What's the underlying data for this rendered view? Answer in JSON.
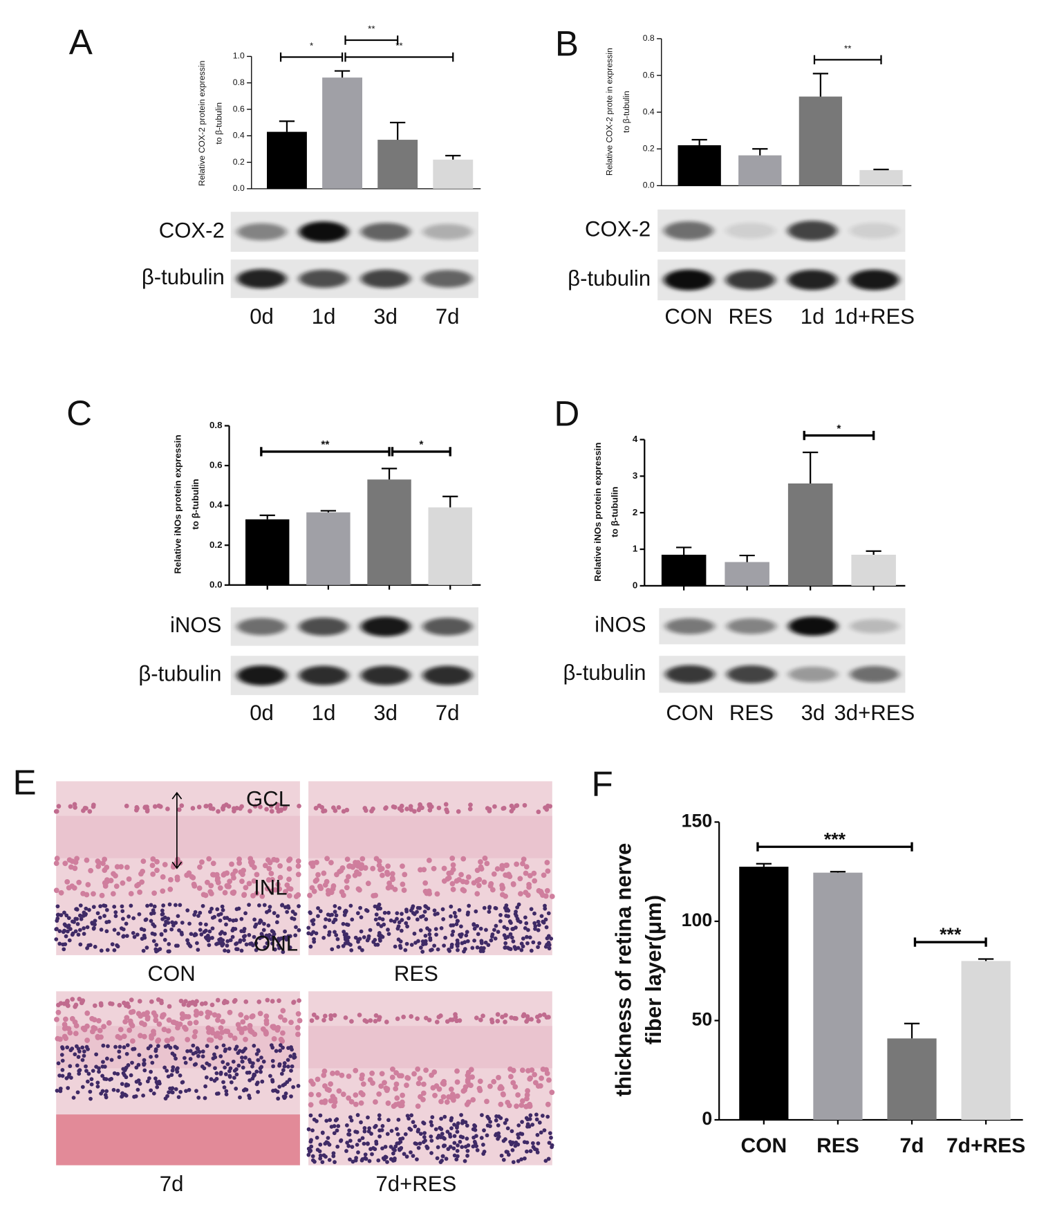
{
  "chart_data": [
    {
      "type": "bar",
      "panel": "A",
      "ylabel": [
        "Relative COX-2 protein expressin",
        "to β-tubulin"
      ],
      "categories": [
        "0d",
        "1d",
        "3d",
        "7d"
      ],
      "values": [
        0.43,
        0.84,
        0.37,
        0.22
      ],
      "errors": [
        0.08,
        0.05,
        0.13,
        0.03
      ],
      "colors": [
        "#000000",
        "#a0a0a6",
        "#787878",
        "#d9d9d9"
      ],
      "ylim": [
        0,
        1.0
      ],
      "yticks": [
        {
          "value": 0,
          "label": "0.0"
        },
        0.2,
        0.4,
        0.6,
        0.8,
        {
          "value": 1,
          "label": "1.0"
        }
      ],
      "blot_bands": [
        "COX-2",
        "β-tubulin"
      ],
      "annotations": [
        {
          "text": "*",
          "between": [
            "0d",
            "1d"
          ]
        },
        {
          "text": "**",
          "between": [
            "1d",
            "7d"
          ]
        },
        {
          "text": "**",
          "between": [
            "1d",
            "3d"
          ]
        }
      ]
    },
    {
      "type": "bar",
      "panel": "B",
      "ylabel": [
        "Relative COX-2 prote in expressin",
        "to β-tubulin"
      ],
      "categories": [
        "CON",
        "RES",
        "1d",
        "1d+RES"
      ],
      "values": [
        0.22,
        0.165,
        0.485,
        0.085
      ],
      "errors": [
        0.03,
        0.035,
        0.125,
        0.003
      ],
      "colors": [
        "#000000",
        "#a0a0a6",
        "#787878",
        "#d9d9d9"
      ],
      "ylim": [
        0,
        0.8
      ],
      "yticks": [
        {
          "value": 0,
          "label": "0.0"
        },
        0.2,
        0.4,
        0.6,
        0.8
      ],
      "blot_bands": [
        "COX-2",
        "β-tubulin"
      ],
      "annotations": [
        {
          "text": "**",
          "between": [
            "1d",
            "1d+RES"
          ]
        }
      ]
    },
    {
      "type": "bar",
      "panel": "C",
      "ylabel": [
        "Relative iNOs protein expressin",
        "to β-tubulin"
      ],
      "categories": [
        "0d",
        "1d",
        "3d",
        "7d"
      ],
      "values": [
        0.33,
        0.365,
        0.53,
        0.39
      ],
      "errors": [
        0.02,
        0.008,
        0.055,
        0.055
      ],
      "colors": [
        "#000000",
        "#a0a0a6",
        "#787878",
        "#d9d9d9"
      ],
      "ylim": [
        0,
        0.8
      ],
      "yticks": [
        {
          "value": 0,
          "label": "0.0"
        },
        0.2,
        0.4,
        0.6,
        0.8
      ],
      "blot_bands": [
        "iNOS",
        "β-tubulin"
      ],
      "annotations": [
        {
          "text": "**",
          "between": [
            "0d",
            "3d"
          ]
        },
        {
          "text": "*",
          "between": [
            "3d",
            "7d"
          ]
        }
      ]
    },
    {
      "type": "bar",
      "panel": "D",
      "ylabel": [
        "Relative iNOs protein expressin",
        "to β-tubulin"
      ],
      "categories": [
        "CON",
        "RES",
        "3d",
        "3d+RES"
      ],
      "values": [
        0.85,
        0.65,
        2.8,
        0.85
      ],
      "errors": [
        0.2,
        0.18,
        0.85,
        0.1
      ],
      "colors": [
        "#000000",
        "#a0a0a6",
        "#787878",
        "#d9d9d9"
      ],
      "ylim": [
        0,
        4
      ],
      "yticks": [
        0,
        1,
        2,
        3,
        4
      ],
      "blot_bands": [
        "iNOS",
        "β-tubulin"
      ],
      "annotations": [
        {
          "text": "*",
          "between": [
            "3d",
            "3d+RES"
          ]
        }
      ]
    },
    {
      "type": "bar",
      "panel": "F",
      "ylabel": [
        "thickness of retina nerve",
        "fiber layer(μm)"
      ],
      "categories": [
        "CON",
        "RES",
        "7d",
        "7d+RES"
      ],
      "values": [
        127.5,
        124.5,
        41,
        80
      ],
      "errors": [
        1.5,
        0.5,
        7.5,
        1
      ],
      "colors": [
        "#000000",
        "#a0a0a6",
        "#787878",
        "#d9d9d9"
      ],
      "ylim": [
        0,
        150
      ],
      "yticks": [
        0,
        50,
        100,
        150
      ],
      "annotations": [
        {
          "text": "***",
          "between": [
            "CON",
            "7d"
          ]
        },
        {
          "text": "***",
          "between": [
            "7d",
            "7d+RES"
          ]
        }
      ]
    }
  ],
  "histology": {
    "panel": "E",
    "images": [
      "CON",
      "RES",
      "7d",
      "7d+RES"
    ],
    "layers": [
      "GCL",
      "INL",
      "ONL"
    ]
  }
}
